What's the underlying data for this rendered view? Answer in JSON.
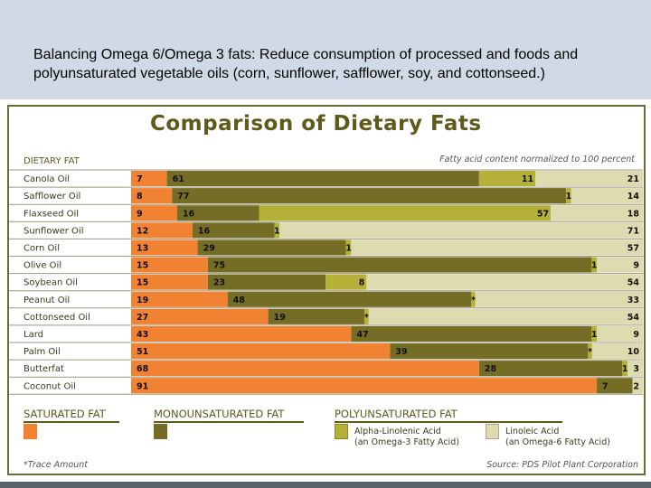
{
  "slide": {
    "caption": "Balancing Omega 6/Omega 3 fats: Reduce consumption of processed and foods and polyunsaturated vegetable oils (corn, sunflower, safflower, soy, and cottonseed.)"
  },
  "chart_data": {
    "type": "bar",
    "orientation": "horizontal-stacked",
    "title": "Comparison of Dietary Fats",
    "category_header": "DIETARY FAT",
    "subtitle": "Fatty acid content normalized to 100 percent",
    "categories": [
      "Canola Oil",
      "Safflower Oil",
      "Flaxseed Oil",
      "Sunflower Oil",
      "Corn Oil",
      "Olive Oil",
      "Soybean Oil",
      "Peanut Oil",
      "Cottonseed Oil",
      "Lard",
      "Palm Oil",
      "Butterfat",
      "Coconut Oil"
    ],
    "xlim": [
      0,
      100
    ],
    "series": [
      {
        "key": "saturated",
        "color": "#f08232",
        "values": [
          7,
          8,
          9,
          12,
          13,
          15,
          15,
          19,
          27,
          43,
          51,
          68,
          91
        ],
        "labels": [
          "7",
          "8",
          "9",
          "12",
          "13",
          "15",
          "15",
          "19",
          "27",
          "43",
          "51",
          "68",
          "91"
        ]
      },
      {
        "key": "monounsaturated",
        "color": "#756d25",
        "values": [
          61,
          77,
          16,
          16,
          29,
          75,
          23,
          48,
          19,
          47,
          39,
          28,
          7
        ],
        "labels": [
          "61",
          "77",
          "16",
          "16",
          "29",
          "75",
          "23",
          "48",
          "19",
          "47",
          "39",
          "28",
          "7"
        ]
      },
      {
        "key": "alpha_linolenic",
        "color": "#b4b038",
        "values": [
          11,
          1,
          57,
          1,
          1,
          1,
          8,
          null,
          null,
          1,
          null,
          1,
          0
        ],
        "labels": [
          "11",
          "1",
          "57",
          "1",
          "1",
          "1",
          "8",
          "*",
          "*",
          "1",
          "*",
          "1",
          ""
        ]
      },
      {
        "key": "linoleic",
        "color": "#dedbb1",
        "values": [
          21,
          14,
          18,
          71,
          57,
          9,
          54,
          33,
          54,
          9,
          10,
          3,
          2
        ],
        "labels": [
          "21",
          "14",
          "18",
          "71",
          "57",
          "9",
          "54",
          "33",
          "54",
          "9",
          "10",
          "3",
          "2"
        ]
      }
    ],
    "legend": {
      "saturated": "SATURATED FAT",
      "monounsaturated": "MONOUNSATURATED FAT",
      "polyunsaturated": "POLYUNSATURATED FAT",
      "alpha_linolenic_1": "Alpha-Linolenic Acid",
      "alpha_linolenic_2": "(an Omega-3 Fatty Acid)",
      "linoleic_1": "Linoleic Acid",
      "linoleic_2": "(an Omega-6 Fatty Acid)",
      "placement": "bottom"
    },
    "footnote": "*Trace Amount",
    "source": "Source: PDS Pilot Plant Corporation"
  }
}
